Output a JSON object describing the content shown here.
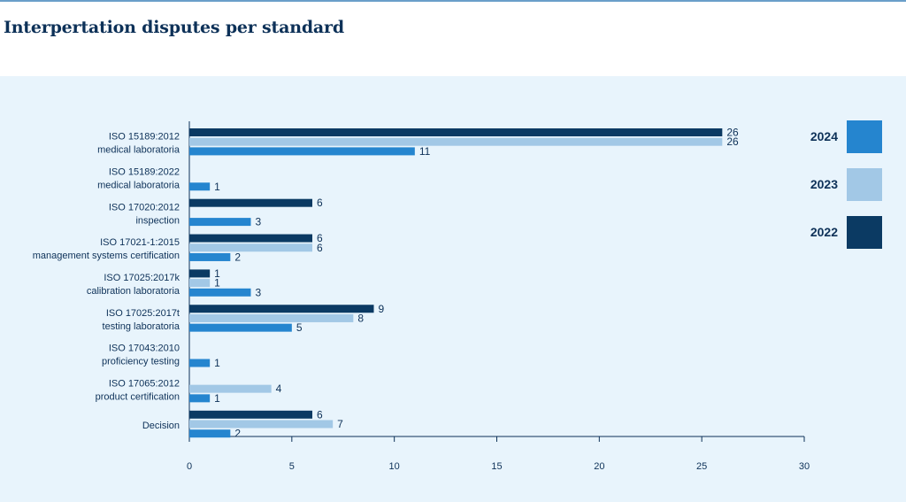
{
  "page": {
    "title": "Interpertation disputes per standard"
  },
  "colors": {
    "background": "#ffffff",
    "panel": "#e8f4fc",
    "title": "#0d3158",
    "series_2024": "#2585cf",
    "series_2023": "#a2c8e6",
    "series_2022": "#0b3a63"
  },
  "chart_data": {
    "type": "bar",
    "orientation": "horizontal",
    "title": "Interpertation disputes per standard",
    "xlabel": "",
    "ylabel": "",
    "xlim": [
      0,
      30
    ],
    "xticks": [
      0,
      5,
      10,
      15,
      20,
      25,
      30
    ],
    "grid": false,
    "legend_position": "right",
    "categories": [
      [
        "ISO 15189:2012",
        "medical laboratoria"
      ],
      [
        "ISO 15189:2022",
        "medical laboratoria"
      ],
      [
        "ISO 17020:2012",
        "inspection"
      ],
      [
        "ISO 17021-1:2015",
        "management systems certification"
      ],
      [
        "ISO 17025:2017k",
        "calibration laboratoria"
      ],
      [
        "ISO 17025:2017t",
        "testing laboratoria"
      ],
      [
        "ISO 17043:2010",
        "proficiency testing"
      ],
      [
        "ISO 17065:2012",
        "product certification"
      ],
      [
        "Decision"
      ]
    ],
    "series": [
      {
        "name": "2022",
        "color": "#0b3a63",
        "values": [
          26,
          null,
          6,
          6,
          1,
          9,
          null,
          null,
          6
        ]
      },
      {
        "name": "2023",
        "color": "#a2c8e6",
        "values": [
          26,
          null,
          null,
          6,
          1,
          8,
          null,
          4,
          7
        ]
      },
      {
        "name": "2024",
        "color": "#2585cf",
        "values": [
          11,
          1,
          3,
          2,
          3,
          5,
          1,
          1,
          2
        ]
      }
    ],
    "legend_order": [
      "2024",
      "2023",
      "2022"
    ]
  }
}
